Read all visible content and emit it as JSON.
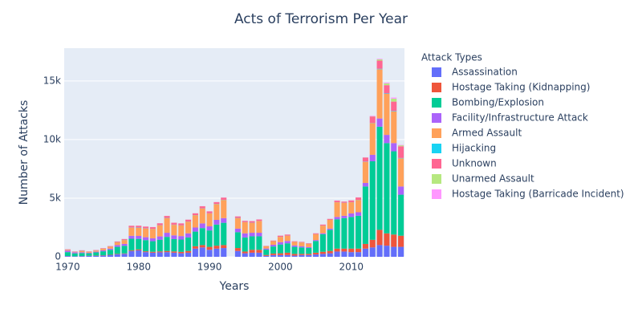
{
  "chart_data": {
    "type": "stacked_bar",
    "title": "Acts of Terrorism Per Year",
    "x_label": "Years",
    "y_label": "Number of Attacks",
    "legend_title": "Attack Types",
    "x": [
      1970,
      1971,
      1972,
      1973,
      1974,
      1975,
      1976,
      1977,
      1978,
      1979,
      1980,
      1981,
      1982,
      1983,
      1984,
      1985,
      1986,
      1987,
      1988,
      1989,
      1990,
      1991,
      1992,
      1994,
      1995,
      1996,
      1997,
      1998,
      1999,
      2000,
      2001,
      2002,
      2003,
      2004,
      2005,
      2006,
      2007,
      2008,
      2009,
      2010,
      2011,
      2012,
      2013,
      2014,
      2015,
      2016,
      2017
    ],
    "series": [
      {
        "name": "Assassination",
        "color": "#636efa",
        "values": [
          60,
          40,
          60,
          70,
          80,
          100,
          140,
          210,
          250,
          480,
          550,
          400,
          350,
          380,
          400,
          350,
          300,
          350,
          700,
          800,
          600,
          700,
          750,
          500,
          300,
          350,
          350,
          80,
          150,
          150,
          150,
          100,
          150,
          150,
          200,
          250,
          300,
          450,
          450,
          400,
          400,
          700,
          800,
          1000,
          950,
          850,
          850
        ]
      },
      {
        "name": "Hostage Taking (Kidnapping)",
        "color": "#ef553b",
        "values": [
          10,
          5,
          10,
          20,
          25,
          30,
          30,
          40,
          40,
          60,
          80,
          70,
          80,
          80,
          100,
          110,
          120,
          150,
          200,
          200,
          250,
          250,
          250,
          250,
          150,
          250,
          250,
          80,
          130,
          150,
          200,
          150,
          100,
          100,
          150,
          180,
          200,
          250,
          250,
          300,
          300,
          400,
          650,
          1300,
          1050,
          1050,
          950
        ]
      },
      {
        "name": "Bombing/Explosion",
        "color": "#00cc96",
        "values": [
          330,
          250,
          250,
          210,
          270,
          340,
          430,
          600,
          650,
          1000,
          900,
          950,
          900,
          1000,
          1200,
          1050,
          1050,
          1150,
          1250,
          1450,
          1400,
          1800,
          1900,
          1350,
          1200,
          1150,
          1150,
          450,
          600,
          750,
          800,
          600,
          550,
          500,
          1000,
          1500,
          1800,
          2500,
          2600,
          2700,
          2800,
          4900,
          6700,
          8800,
          7700,
          7100,
          3500
        ]
      },
      {
        "name": "Facility/Infrastructure Attack",
        "color": "#ab63fa",
        "values": [
          120,
          90,
          70,
          50,
          60,
          80,
          100,
          150,
          160,
          250,
          250,
          250,
          250,
          280,
          350,
          320,
          300,
          350,
          350,
          400,
          350,
          400,
          400,
          300,
          350,
          300,
          300,
          100,
          150,
          200,
          200,
          120,
          100,
          80,
          80,
          80,
          100,
          200,
          200,
          300,
          300,
          300,
          550,
          700,
          700,
          700,
          700
        ]
      },
      {
        "name": "Armed Assault",
        "color": "#ffa15a",
        "values": [
          60,
          40,
          110,
          80,
          90,
          130,
          160,
          230,
          330,
          700,
          700,
          750,
          800,
          950,
          1250,
          900,
          900,
          1000,
          1050,
          1280,
          1100,
          1350,
          1550,
          900,
          950,
          850,
          1000,
          180,
          300,
          450,
          450,
          300,
          320,
          280,
          500,
          650,
          750,
          1250,
          1100,
          950,
          1050,
          1800,
          2700,
          4200,
          3500,
          2700,
          2400
        ]
      },
      {
        "name": "Hijacking",
        "color": "#19d3f3",
        "values": [
          10,
          5,
          15,
          5,
          10,
          10,
          10,
          15,
          15,
          15,
          20,
          15,
          10,
          10,
          15,
          15,
          15,
          10,
          10,
          10,
          10,
          15,
          15,
          15,
          10,
          10,
          10,
          5,
          5,
          5,
          5,
          5,
          5,
          5,
          5,
          5,
          5,
          10,
          10,
          10,
          10,
          20,
          20,
          40,
          40,
          40,
          30
        ]
      },
      {
        "name": "Unknown",
        "color": "#ff6692",
        "values": [
          50,
          30,
          40,
          30,
          40,
          45,
          45,
          60,
          70,
          140,
          150,
          140,
          140,
          160,
          170,
          160,
          160,
          160,
          150,
          170,
          160,
          150,
          180,
          130,
          110,
          130,
          120,
          30,
          50,
          100,
          90,
          50,
          45,
          45,
          70,
          80,
          80,
          130,
          100,
          150,
          200,
          350,
          550,
          700,
          700,
          800,
          1000
        ]
      },
      {
        "name": "Unarmed Assault",
        "color": "#b6e880",
        "values": [
          5,
          5,
          5,
          5,
          3,
          3,
          5,
          10,
          5,
          10,
          5,
          5,
          5,
          5,
          5,
          5,
          5,
          5,
          5,
          5,
          5,
          5,
          10,
          5,
          5,
          5,
          5,
          5,
          5,
          5,
          5,
          5,
          5,
          3,
          5,
          5,
          5,
          5,
          5,
          5,
          5,
          10,
          20,
          100,
          150,
          250,
          80
        ]
      },
      {
        "name": "Hostage Taking (Barricade Incident)",
        "color": "#ff97ff",
        "values": [
          6,
          6,
          8,
          3,
          3,
          2,
          3,
          4,
          6,
          7,
          7,
          6,
          9,
          5,
          5,
          5,
          10,
          8,
          6,
          9,
          12,
          13,
          16,
          6,
          6,
          13,
          12,
          4,
          5,
          4,
          6,
          3,
          3,
          3,
          7,
          8,
          2,
          10,
          6,
          11,
          11,
          12,
          46,
          60,
          75,
          97,
          40
        ]
      }
    ],
    "xlim": [
      1969.5,
      2017.5
    ],
    "xticks": [
      1970,
      1980,
      1990,
      2000,
      2010
    ],
    "ylim": [
      0,
      17800
    ],
    "yticks": [
      0,
      {
        "value": 5000,
        "label": "5k"
      },
      {
        "value": 10000,
        "label": "10k"
      },
      {
        "value": 15000,
        "label": "15k"
      }
    ],
    "grid": true,
    "legend": "right"
  }
}
